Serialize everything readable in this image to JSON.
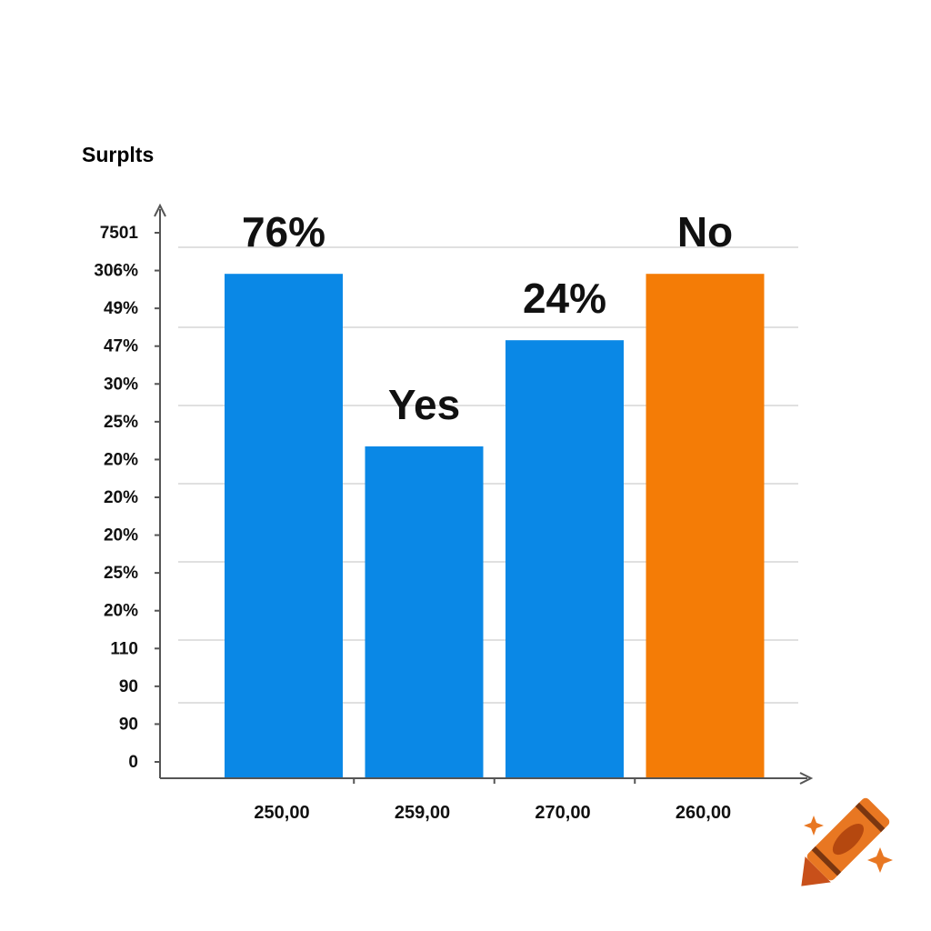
{
  "chart_data": {
    "type": "bar",
    "ylabel": "Surplts",
    "y_tick_labels": [
      "7501",
      "306%",
      "49%",
      "47%",
      "30%",
      "25%",
      "20%",
      "20%",
      "20%",
      "25%",
      "20%",
      "110",
      "90",
      "90",
      "0"
    ],
    "categories": [
      "250,00",
      "259,00",
      "270,00",
      "260,00"
    ],
    "values": [
      76,
      50,
      66,
      76
    ],
    "data_labels": [
      "76%",
      "Yes",
      "24%",
      "No"
    ],
    "colors": [
      "#0a88e6",
      "#0a88e6",
      "#0a88e6",
      "#f47c06"
    ],
    "ylim": [
      0,
      80
    ],
    "grid": true,
    "legend": "none"
  },
  "decoration": {
    "icon": "crayon-icon",
    "color": "#e87722"
  }
}
